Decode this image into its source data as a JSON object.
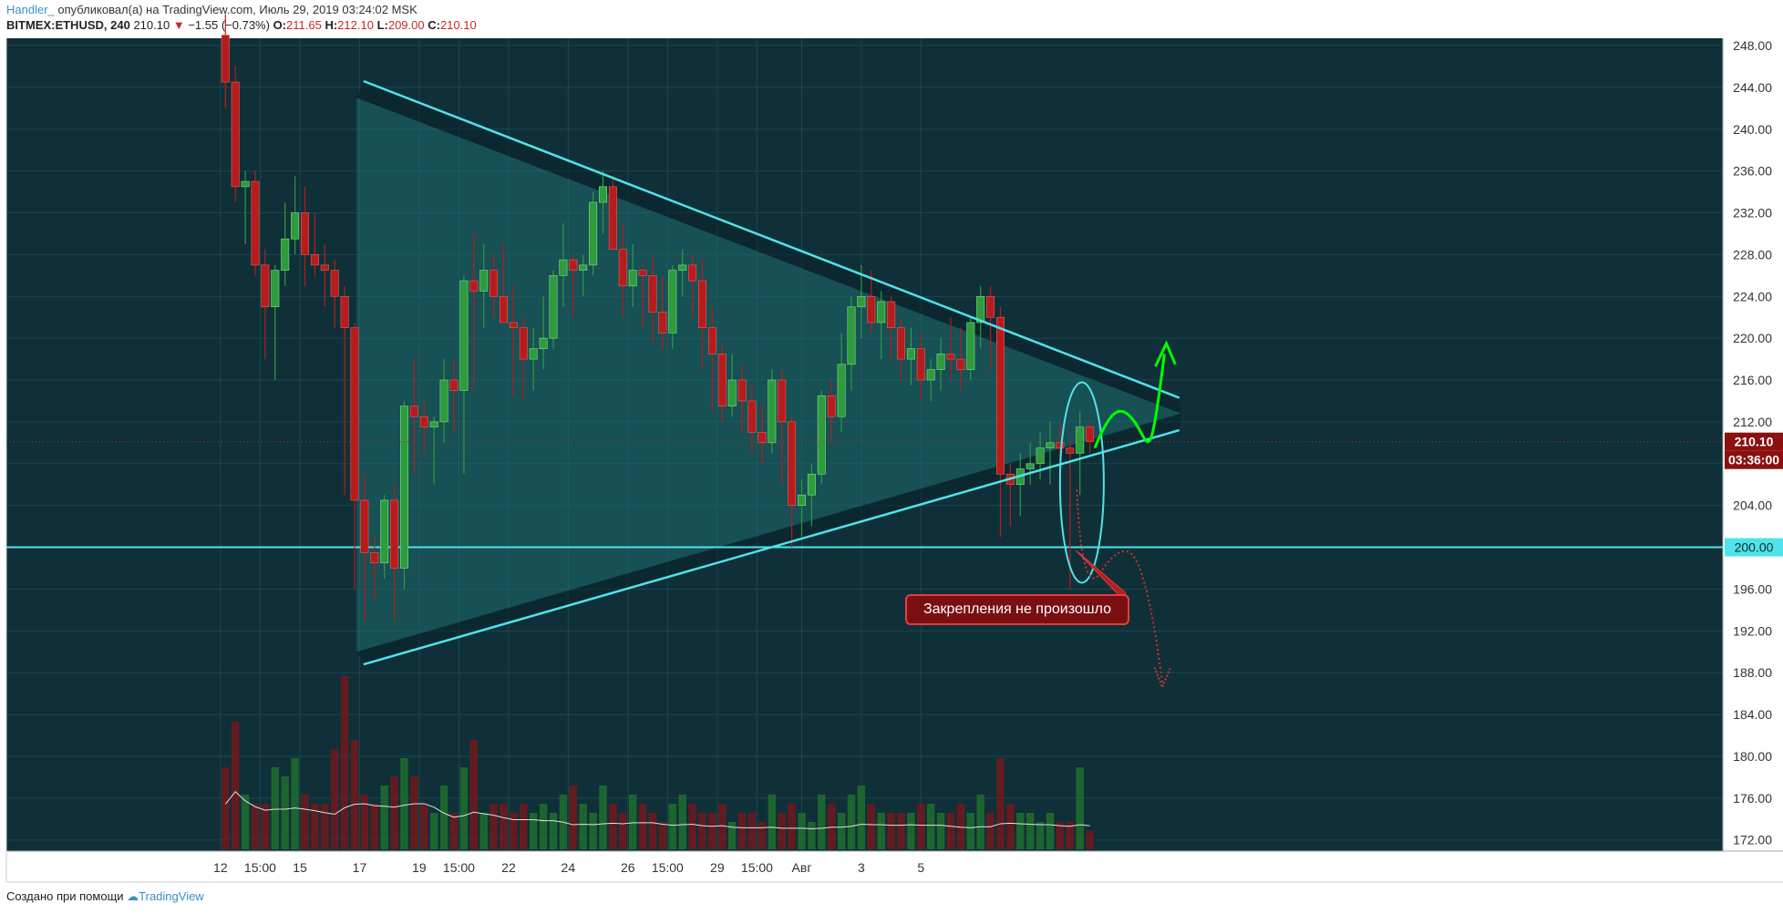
{
  "header": {
    "author": "Handler_",
    "published": " опубликовал(а) на TradingView.com, Июль 29, 2019 03:24:02 MSK",
    "symbol": "BITMEX:ETHUSD, 240",
    "last": "210.10",
    "arrow": "▼",
    "change": "−1.55 (−0.73%)",
    "o_label": "O:",
    "o_value": "211.65",
    "h_label": "H:",
    "h_value": "212.10",
    "l_label": "L:",
    "l_value": "209.00",
    "c_label": "C:",
    "c_value": "210.10"
  },
  "footer": {
    "created_with": "Создано при помощи",
    "brand": "TradingView"
  },
  "annotation": {
    "text": "Закрепления не произошло"
  },
  "colors": {
    "background": "#0f3038",
    "up": "#2e9b3c",
    "down": "#b71c1c",
    "trendline": "#4fe3ea",
    "triangle_fill": "#1f6b6e",
    "projection_up": "#00ff00",
    "projection_down": "#d32f2f",
    "price_label": "#8b1010",
    "support_label": "#4fe3ea"
  },
  "chart_data": {
    "type": "candlestick",
    "symbol": "BITMEX:ETHUSD",
    "interval": "240",
    "y_axis": {
      "ticks": [
        "248.00",
        "244.00",
        "240.00",
        "236.00",
        "232.00",
        "228.00",
        "224.00",
        "220.00",
        "216.00",
        "212.00",
        "208.00",
        "204.00",
        "200.00",
        "196.00",
        "192.00",
        "188.00",
        "184.00",
        "180.00",
        "176.00",
        "172.00"
      ],
      "range": [
        171,
        249
      ]
    },
    "x_axis": {
      "ticks": [
        {
          "label": "12",
          "t": -0.5
        },
        {
          "label": "15:00",
          "t": 3.5
        },
        {
          "label": "15",
          "t": 7.5
        },
        {
          "label": "17",
          "t": 13.5
        },
        {
          "label": "19",
          "t": 19.5
        },
        {
          "label": "15:00",
          "t": 23.5
        },
        {
          "label": "22",
          "t": 28.5
        },
        {
          "label": "24",
          "t": 34.5
        },
        {
          "label": "26",
          "t": 40.5
        },
        {
          "label": "15:00",
          "t": 44.5
        },
        {
          "label": "29",
          "t": 49.5
        },
        {
          "label": "15:00",
          "t": 53.5
        },
        {
          "label": "Авг",
          "t": 58
        },
        {
          "label": "3",
          "t": 64
        },
        {
          "label": "5",
          "t": 70
        }
      ]
    },
    "last_price": "210.10",
    "countdown": "03:36:00",
    "support_level": "200.00",
    "candles": [
      [
        249.0,
        251.0,
        242.0,
        244.5
      ],
      [
        244.5,
        246.0,
        233.0,
        234.5
      ],
      [
        234.5,
        236.0,
        229.0,
        235.0
      ],
      [
        235.0,
        236.0,
        226.0,
        227.0
      ],
      [
        227.0,
        228.5,
        218.0,
        223.0
      ],
      [
        223.0,
        227.0,
        216.0,
        226.5
      ],
      [
        226.5,
        233.0,
        225.0,
        229.5
      ],
      [
        229.5,
        235.5,
        228.0,
        232.0
      ],
      [
        232.0,
        234.5,
        225.0,
        228.0
      ],
      [
        228.0,
        232.0,
        226.0,
        227.0
      ],
      [
        227.0,
        229.0,
        223.0,
        226.5
      ],
      [
        226.5,
        227.5,
        221.0,
        224.0
      ],
      [
        224.0,
        225.0,
        205.0,
        221.0
      ],
      [
        221.0,
        221.5,
        196.0,
        204.5
      ],
      [
        204.5,
        207.0,
        193.0,
        199.5
      ],
      [
        199.5,
        201.0,
        195.0,
        198.5
      ],
      [
        198.5,
        205.0,
        197.0,
        204.5
      ],
      [
        204.5,
        206.0,
        193.0,
        198.0
      ],
      [
        198.0,
        214.0,
        196.0,
        213.5
      ],
      [
        213.5,
        218.0,
        207.0,
        212.5
      ],
      [
        212.5,
        214.0,
        209.0,
        211.5
      ],
      [
        211.5,
        212.5,
        206.0,
        212.0
      ],
      [
        212.0,
        218.0,
        210.0,
        216.0
      ],
      [
        216.0,
        218.0,
        211.0,
        215.0
      ],
      [
        215.0,
        226.0,
        207.0,
        225.5
      ],
      [
        225.5,
        230.0,
        215.0,
        224.5
      ],
      [
        224.5,
        229.0,
        221.0,
        226.5
      ],
      [
        226.5,
        228.0,
        222.0,
        224.0
      ],
      [
        224.0,
        229.0,
        222.0,
        221.5
      ],
      [
        221.5,
        225.0,
        214.5,
        221.0
      ],
      [
        221.0,
        222.0,
        214.0,
        218.0
      ],
      [
        218.0,
        221.0,
        215.0,
        219.0
      ],
      [
        219.0,
        224.0,
        217.0,
        220.0
      ],
      [
        220.0,
        226.5,
        219.0,
        226.0
      ],
      [
        226.0,
        231.0,
        223.0,
        227.5
      ],
      [
        227.5,
        228.0,
        222.0,
        226.5
      ],
      [
        226.5,
        228.0,
        224.0,
        227.0
      ],
      [
        227.0,
        234.0,
        226.0,
        233.0
      ],
      [
        233.0,
        236.0,
        230.0,
        234.5
      ],
      [
        234.5,
        235.5,
        229.0,
        228.5
      ],
      [
        228.5,
        231.0,
        222.0,
        225.0
      ],
      [
        225.0,
        229.0,
        223.0,
        226.5
      ],
      [
        226.5,
        227.0,
        221.0,
        226.0
      ],
      [
        226.0,
        228.0,
        219.5,
        222.5
      ],
      [
        222.5,
        226.0,
        219.0,
        220.5
      ],
      [
        220.5,
        227.0,
        219.0,
        226.5
      ],
      [
        226.5,
        228.5,
        224.0,
        227.0
      ],
      [
        227.0,
        228.0,
        222.0,
        225.5
      ],
      [
        225.5,
        227.5,
        217.0,
        221.0
      ],
      [
        221.0,
        223.0,
        213.0,
        218.5
      ],
      [
        218.5,
        219.5,
        212.0,
        213.5
      ],
      [
        213.5,
        218.5,
        212.5,
        216.0
      ],
      [
        216.0,
        217.5,
        211.0,
        214.0
      ],
      [
        214.0,
        215.5,
        209.0,
        211.0
      ],
      [
        211.0,
        213.5,
        208.0,
        210.0
      ],
      [
        210.0,
        217.0,
        209.0,
        216.0
      ],
      [
        216.0,
        217.0,
        206.0,
        212.0
      ],
      [
        212.0,
        212.5,
        200.0,
        204.0
      ],
      [
        204.0,
        206.5,
        201.0,
        205.0
      ],
      [
        205.0,
        208.0,
        202.0,
        207.0
      ],
      [
        207.0,
        215.0,
        206.0,
        214.5
      ],
      [
        214.5,
        216.0,
        210.0,
        212.5
      ],
      [
        212.5,
        220.5,
        211.0,
        217.5
      ],
      [
        217.5,
        224.0,
        215.0,
        223.0
      ],
      [
        223.0,
        227.0,
        220.0,
        224.0
      ],
      [
        224.0,
        226.5,
        220.5,
        221.5
      ],
      [
        221.5,
        224.5,
        218.0,
        223.5
      ],
      [
        223.5,
        224.0,
        218.0,
        221.0
      ],
      [
        221.0,
        222.0,
        216.0,
        218.0
      ],
      [
        218.0,
        221.0,
        215.5,
        219.0
      ],
      [
        219.0,
        220.5,
        214.0,
        216.0
      ],
      [
        216.0,
        218.0,
        214.0,
        217.0
      ],
      [
        217.0,
        220.0,
        215.0,
        218.5
      ],
      [
        218.5,
        222.0,
        216.0,
        218.0
      ],
      [
        218.0,
        221.0,
        215.0,
        217.0
      ],
      [
        217.0,
        222.0,
        216.0,
        221.5
      ],
      [
        221.5,
        225.0,
        219.0,
        224.0
      ],
      [
        224.0,
        225.0,
        217.0,
        222.0
      ],
      [
        222.0,
        223.0,
        201.0,
        207.0
      ],
      [
        207.0,
        208.0,
        202.0,
        206.0
      ],
      [
        206.0,
        209.0,
        203.0,
        207.5
      ],
      [
        207.5,
        210.0,
        206.0,
        208.0
      ],
      [
        208.0,
        211.0,
        206.5,
        209.5
      ],
      [
        209.5,
        212.0,
        206.0,
        210.0
      ],
      [
        210.0,
        212.0,
        208.5,
        209.5
      ],
      [
        209.5,
        210.0,
        196.0,
        209.0
      ],
      [
        209.0,
        213.0,
        205.0,
        211.5
      ],
      [
        211.5,
        212.1,
        209.0,
        210.1
      ]
    ],
    "volumes": [
      0.45,
      0.7,
      0.3,
      0.25,
      0.25,
      0.45,
      0.4,
      0.5,
      0.3,
      0.25,
      0.25,
      0.55,
      0.95,
      0.6,
      0.3,
      0.25,
      0.35,
      0.4,
      0.5,
      0.4,
      0.25,
      0.2,
      0.35,
      0.2,
      0.45,
      0.6,
      0.2,
      0.25,
      0.25,
      0.2,
      0.25,
      0.2,
      0.25,
      0.2,
      0.3,
      0.35,
      0.25,
      0.2,
      0.35,
      0.25,
      0.2,
      0.3,
      0.25,
      0.2,
      0.15,
      0.25,
      0.3,
      0.25,
      0.2,
      0.2,
      0.25,
      0.15,
      0.2,
      0.2,
      0.15,
      0.3,
      0.2,
      0.25,
      0.2,
      0.15,
      0.3,
      0.25,
      0.2,
      0.3,
      0.35,
      0.25,
      0.2,
      0.2,
      0.2,
      0.2,
      0.25,
      0.25,
      0.2,
      0.2,
      0.25,
      0.2,
      0.3,
      0.2,
      0.5,
      0.25,
      0.2,
      0.2,
      0.15,
      0.2,
      0.15,
      0.15,
      0.45,
      0.1
    ]
  }
}
